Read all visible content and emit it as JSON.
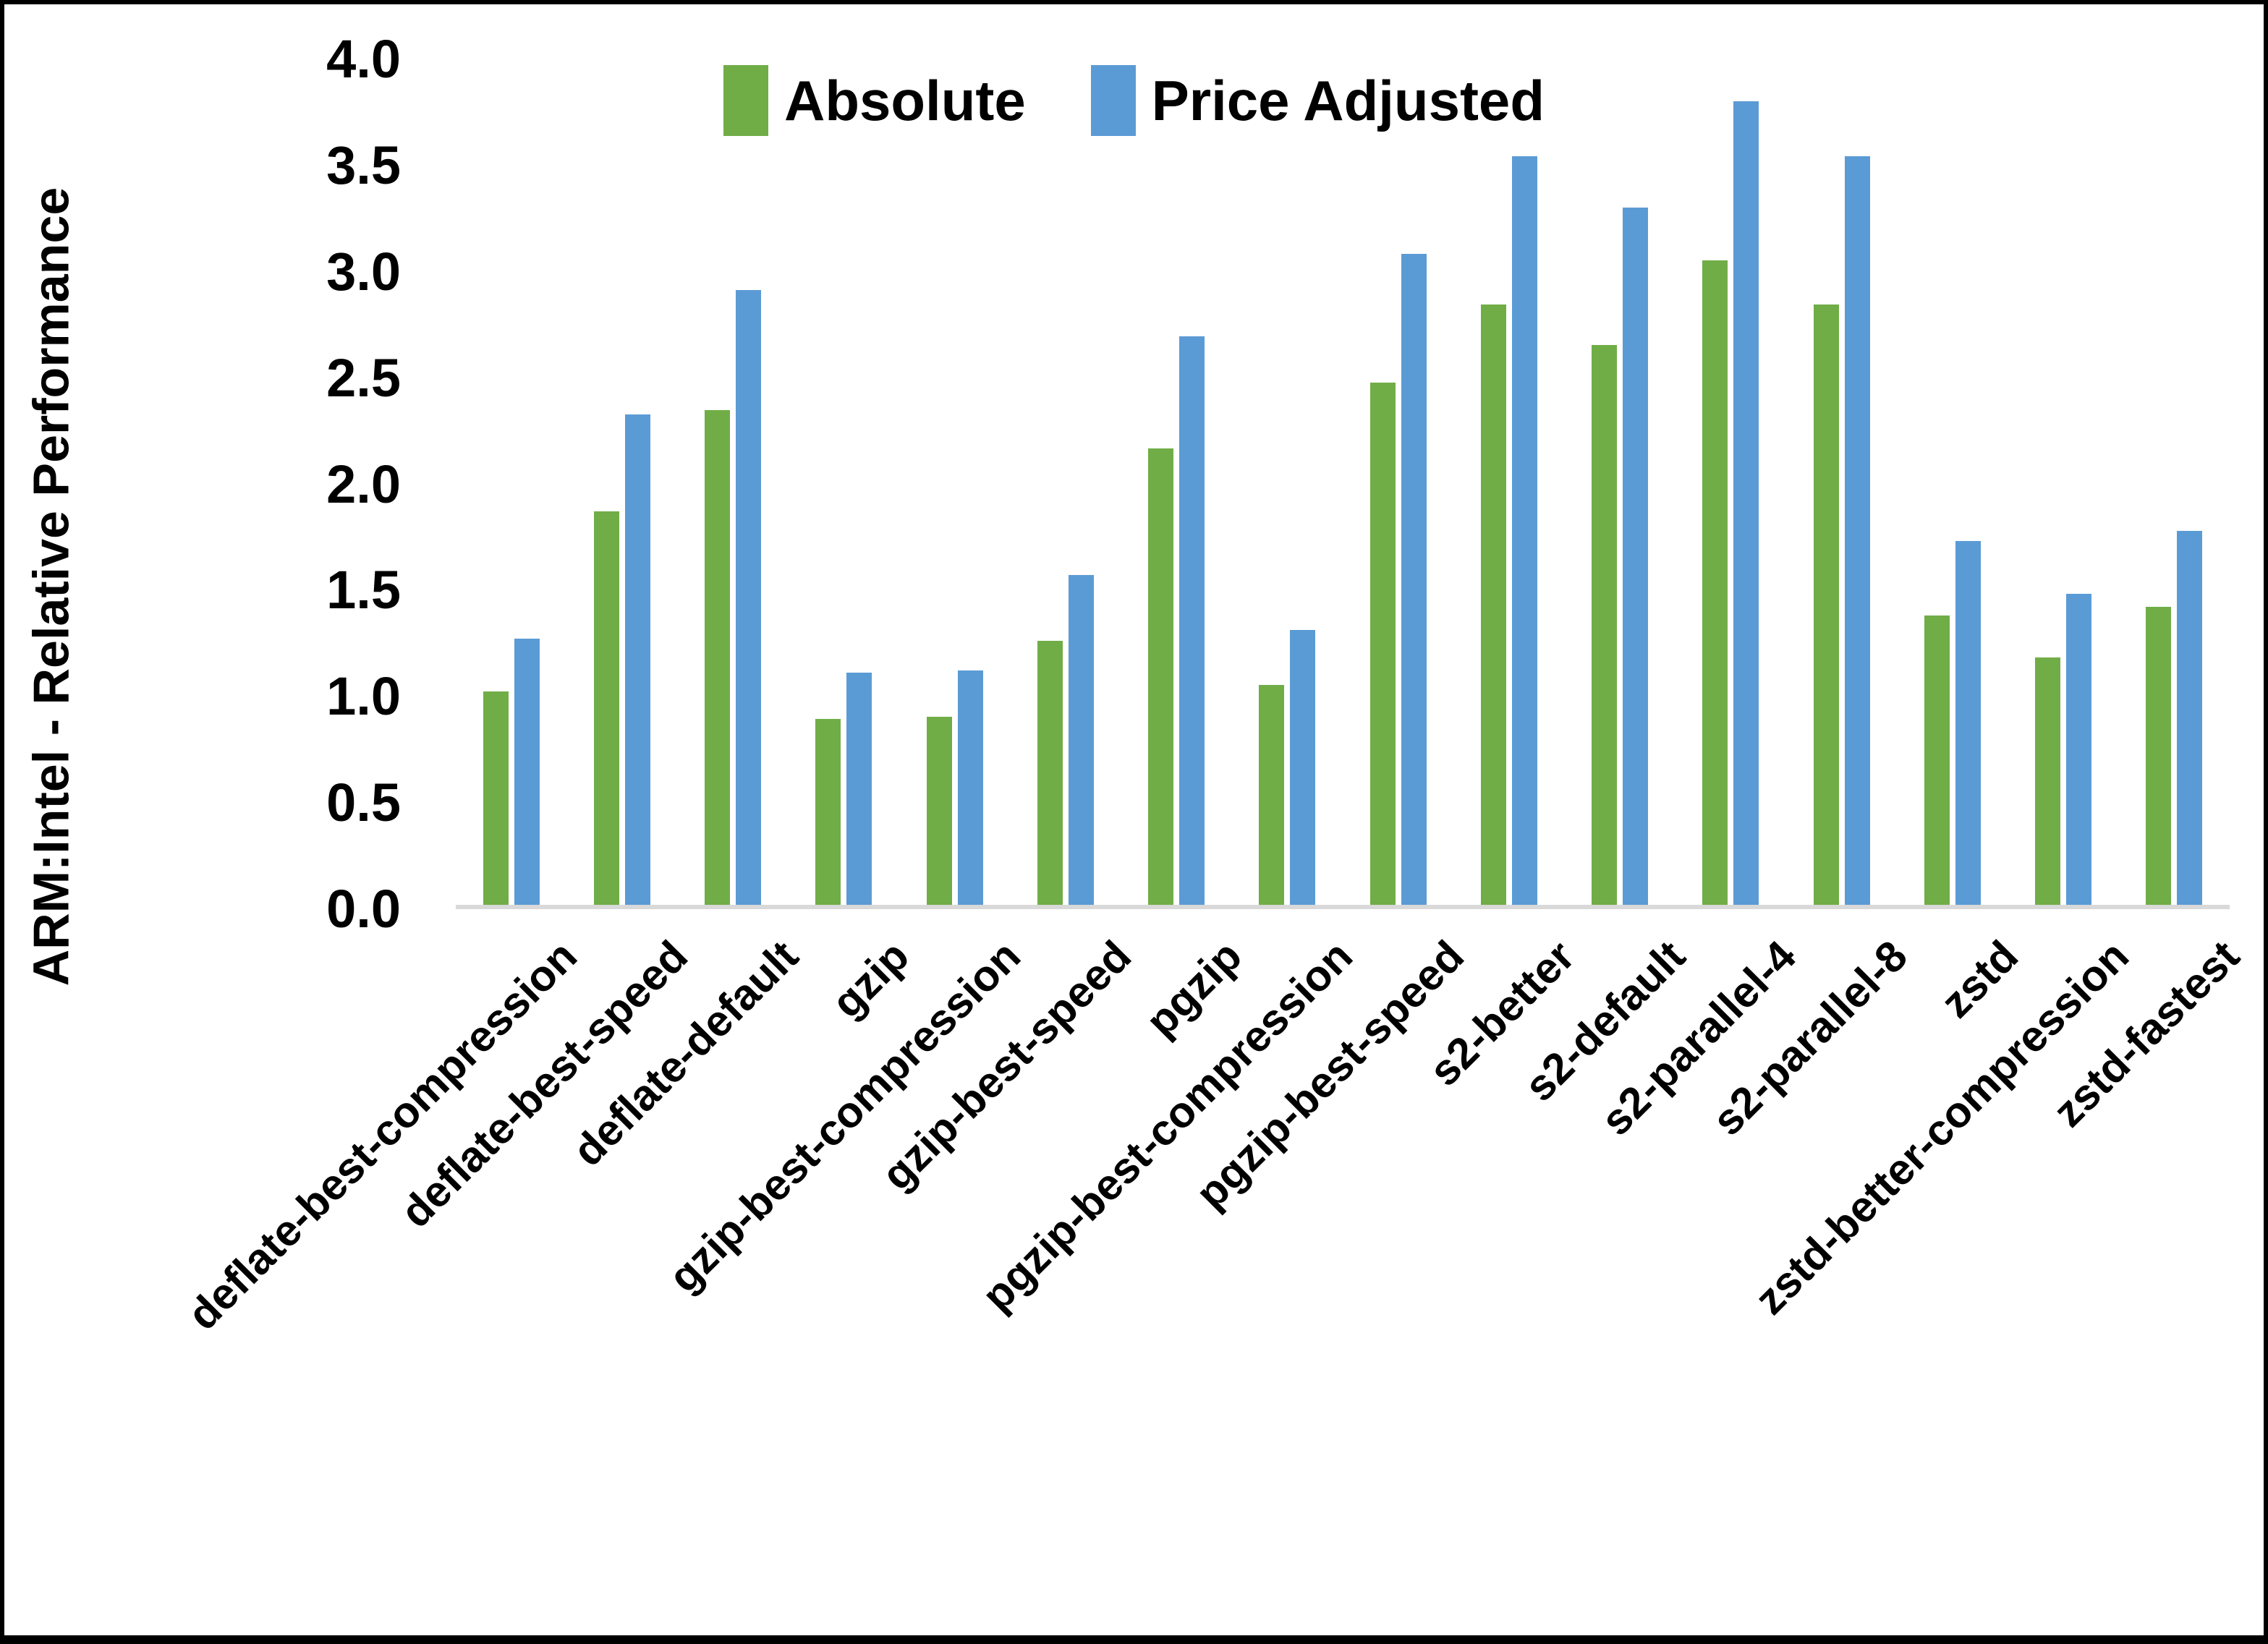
{
  "y_axis": {
    "title": "ARM:Intel - Relative Performance",
    "ticks": [
      "0.0",
      "0.5",
      "1.0",
      "1.5",
      "2.0",
      "2.5",
      "3.0",
      "3.5",
      "4.0"
    ],
    "max": 4.0
  },
  "legend": {
    "items": [
      {
        "label": "Absolute",
        "color": "#70AD47"
      },
      {
        "label": "Price Adjusted",
        "color": "#5B9BD5"
      }
    ]
  },
  "colors": {
    "absolute_green": "#70AD47",
    "price_adjusted_blue": "#5B9BD5",
    "axis_line": "#d9d9d9",
    "text": "#000000",
    "background": "#ffffff"
  },
  "chart_data": {
    "type": "bar",
    "title": "",
    "xlabel": "",
    "ylabel": "ARM:Intel - Relative Performance",
    "ylim": [
      0,
      4.0
    ],
    "grid": false,
    "legend_position": "top-center",
    "categories": [
      "deflate-best-compression",
      "deflate-best-speed",
      "deflate-default",
      "gzip",
      "gzip-best-compression",
      "gzip-best-speed",
      "pgzip",
      "pgzip-best-compression",
      "pgzip-best-speed",
      "s2-better",
      "s2-default",
      "s2-parallel-4",
      "s2-parallel-8",
      "zstd",
      "zstd-better-compression",
      "zstd-fastest"
    ],
    "series": [
      {
        "name": "Absolute",
        "color": "#70AD47",
        "values": [
          1.01,
          1.86,
          2.34,
          0.88,
          0.89,
          1.25,
          2.16,
          1.04,
          2.47,
          2.84,
          2.65,
          3.05,
          2.84,
          1.37,
          1.17,
          1.41
        ]
      },
      {
        "name": "Price Adjusted",
        "color": "#5B9BD5",
        "values": [
          1.26,
          2.32,
          2.91,
          1.1,
          1.11,
          1.56,
          2.69,
          1.3,
          3.08,
          3.54,
          3.3,
          3.8,
          3.54,
          1.72,
          1.47,
          1.77
        ]
      }
    ]
  }
}
